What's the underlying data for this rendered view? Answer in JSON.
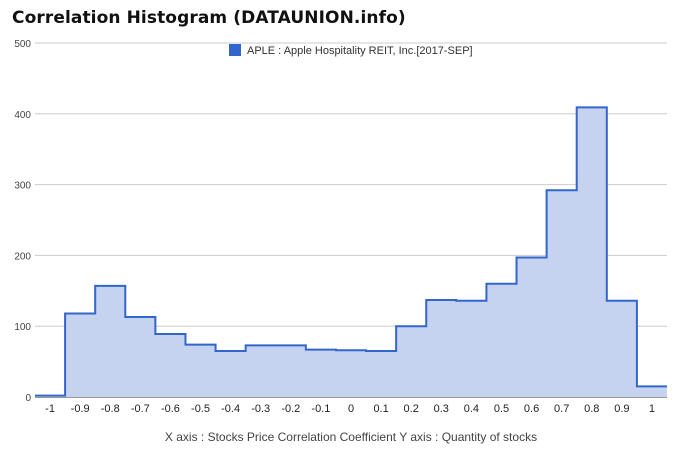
{
  "chart_data": {
    "type": "area",
    "title": "Correlation Histogram (DATAUNION.info)",
    "legend": {
      "label": "APLE : Apple Hospitality REIT, Inc.[2017-SEP]",
      "position": "top"
    },
    "axis_caption": "X axis : Stocks Price Correlation Coefficient  Y axis : Quantity of stocks",
    "xlim": [
      -1.05,
      1.05
    ],
    "ylim": [
      0,
      500
    ],
    "x_ticks": [
      "-1",
      "-0.9",
      "-0.8",
      "-0.7",
      "-0.6",
      "-0.5",
      "-0.4",
      "-0.3",
      "-0.2",
      "-0.1",
      "0",
      "0.1",
      "0.2",
      "0.3",
      "0.4",
      "0.5",
      "0.6",
      "0.7",
      "0.8",
      "0.9",
      "1"
    ],
    "y_ticks": [
      "0",
      "100",
      "200",
      "300",
      "400",
      "500"
    ],
    "grid": true,
    "step": true,
    "series": [
      {
        "name": "APLE : Apple Hospitality REIT, Inc.[2017-SEP]",
        "x": [
          -1,
          -0.9,
          -0.8,
          -0.7,
          -0.6,
          -0.5,
          -0.4,
          -0.3,
          -0.2,
          -0.1,
          0,
          0.1,
          0.2,
          0.3,
          0.4,
          0.5,
          0.6,
          0.7,
          0.8,
          0.9,
          1
        ],
        "values": [
          2,
          118,
          157,
          113,
          89,
          74,
          65,
          73,
          73,
          67,
          66,
          65,
          100,
          137,
          136,
          160,
          197,
          292,
          409,
          136,
          15
        ]
      }
    ],
    "colors": {
      "line": "#3366cc",
      "fill": "#c5d3f0",
      "grid": "#cccccc",
      "axis": "#333333"
    }
  }
}
